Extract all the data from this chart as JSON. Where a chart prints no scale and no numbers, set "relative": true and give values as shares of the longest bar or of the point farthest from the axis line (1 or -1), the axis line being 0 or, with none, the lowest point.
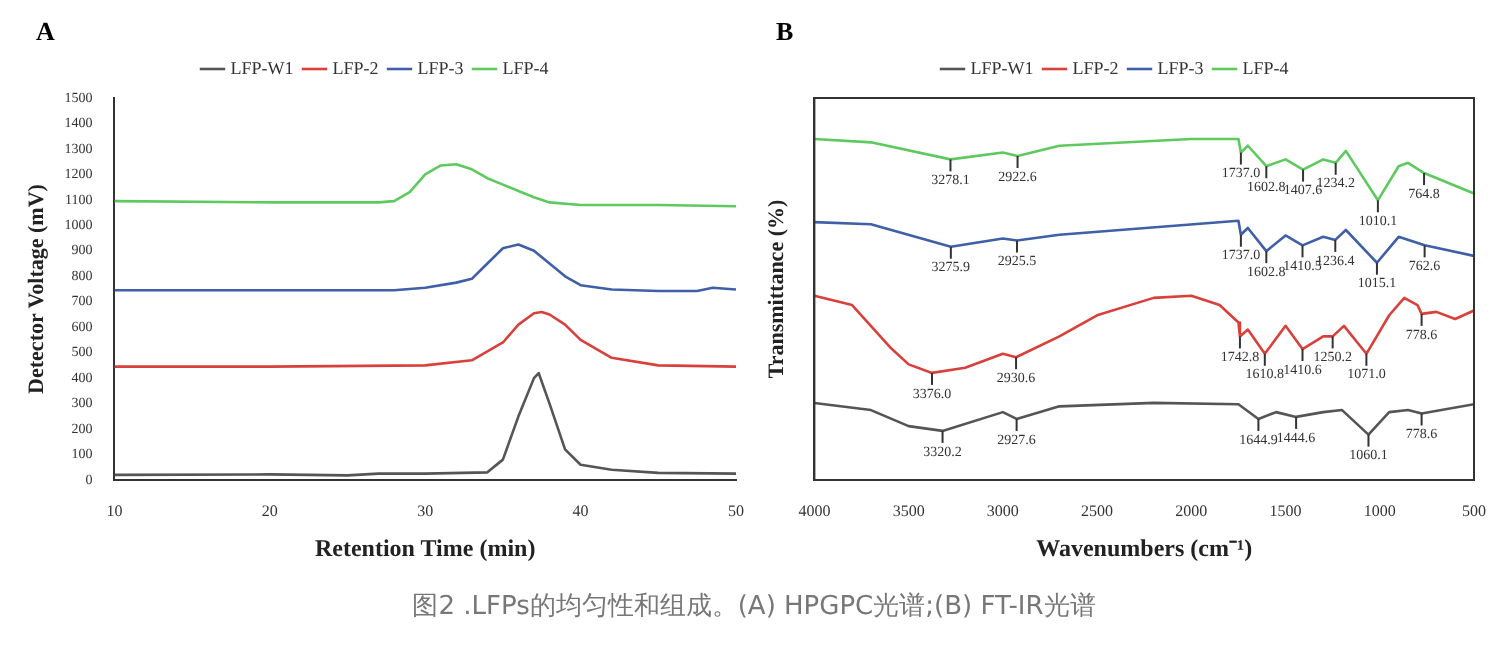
{
  "chart_data": [
    {
      "type": "line",
      "title": "A",
      "xlabel": "Retention Time (min)",
      "ylabel": "Detector Voltage (mV)",
      "xlim": [
        10,
        50
      ],
      "xticks": [
        10,
        20,
        30,
        40,
        50
      ],
      "ylim": [
        0,
        1500
      ],
      "yticks": [
        0,
        100,
        200,
        300,
        400,
        500,
        600,
        700,
        800,
        900,
        1000,
        1100,
        1200,
        1300,
        1400,
        1500
      ],
      "grid": false,
      "legend": "top",
      "marker": "none",
      "series": [
        {
          "name": "LFP-W1",
          "color": "#555555",
          "x": [
            10,
            20,
            25,
            27,
            30,
            34,
            35,
            36,
            37,
            37.3,
            38,
            39,
            40,
            42,
            45,
            50
          ],
          "values": [
            20,
            22,
            18,
            25,
            25,
            30,
            80,
            250,
            400,
            420,
            300,
            120,
            60,
            40,
            28,
            25
          ]
        },
        {
          "name": "LFP-2",
          "color": "#d9403b",
          "x": [
            10,
            20,
            30,
            33,
            35,
            36,
            37,
            37.5,
            38,
            39,
            40,
            42,
            45,
            50
          ],
          "values": [
            445,
            445,
            450,
            470,
            540,
            610,
            655,
            660,
            650,
            610,
            550,
            480,
            450,
            445
          ]
        },
        {
          "name": "LFP-3",
          "color": "#3f5fa8",
          "x": [
            10,
            20,
            28,
            30,
            32,
            33,
            34,
            35,
            36,
            37,
            38,
            39,
            40,
            42,
            45,
            47.5,
            48.5,
            50
          ],
          "values": [
            745,
            745,
            745,
            755,
            775,
            790,
            850,
            910,
            925,
            900,
            850,
            800,
            765,
            748,
            742,
            742,
            755,
            748
          ]
        },
        {
          "name": "LFP-4",
          "color": "#5ec95e",
          "x": [
            10,
            20,
            27,
            28,
            29,
            30,
            31,
            32,
            33,
            34,
            35,
            36,
            37,
            38,
            40,
            45,
            50
          ],
          "values": [
            1095,
            1090,
            1090,
            1095,
            1130,
            1200,
            1235,
            1240,
            1220,
            1185,
            1160,
            1135,
            1110,
            1090,
            1080,
            1080,
            1075
          ]
        }
      ]
    },
    {
      "type": "line",
      "title": "B",
      "xlabel": "Wavenumbers (cm⁻¹)",
      "ylabel": "Transmittance (%)",
      "relative": true,
      "xlim": [
        4000,
        500
      ],
      "xticks": [
        4000,
        3500,
        3000,
        2500,
        2000,
        1500,
        1000,
        500
      ],
      "grid": false,
      "legend": "top",
      "marker": "none",
      "series": [
        {
          "name": "LFP-W1",
          "color": "#555555",
          "x": [
            4000,
            3700,
            3500,
            3320,
            3000,
            2927,
            2700,
            2200,
            1750,
            1644,
            1550,
            1444,
            1300,
            1200,
            1060,
            950,
            850,
            778,
            500
          ],
          "values": [
            0.226,
            0.205,
            0.158,
            0.144,
            0.199,
            0.179,
            0.216,
            0.226,
            0.222,
            0.179,
            0.199,
            0.185,
            0.199,
            0.205,
            0.133,
            0.199,
            0.205,
            0.195,
            0.222
          ]
        },
        {
          "name": "LFP-2",
          "color": "#d9403b",
          "x": [
            4000,
            3800,
            3600,
            3500,
            3376,
            3200,
            3000,
            2930,
            2700,
            2500,
            2200,
            2000,
            1850,
            1750,
            1742,
            1700,
            1610,
            1500,
            1410,
            1300,
            1250,
            1190,
            1071,
            950,
            870,
            800,
            778,
            700,
            600,
            500
          ],
          "values": [
            0.54,
            0.513,
            0.39,
            0.339,
            0.314,
            0.329,
            0.37,
            0.36,
            0.421,
            0.483,
            0.534,
            0.54,
            0.513,
            0.462,
            0.421,
            0.441,
            0.37,
            0.452,
            0.384,
            0.421,
            0.421,
            0.452,
            0.37,
            0.483,
            0.534,
            0.513,
            0.487,
            0.493,
            0.472,
            0.497
          ]
        },
        {
          "name": "LFP-3",
          "color": "#3f5fa8",
          "x": [
            4000,
            3700,
            3276,
            3000,
            2925,
            2700,
            1750,
            1737,
            1700,
            1602,
            1500,
            1410,
            1300,
            1236,
            1180,
            1015,
            900,
            762,
            500
          ],
          "values": [
            0.756,
            0.75,
            0.684,
            0.708,
            0.702,
            0.719,
            0.76,
            0.719,
            0.739,
            0.671,
            0.717,
            0.688,
            0.713,
            0.704,
            0.733,
            0.637,
            0.713,
            0.688,
            0.657
          ]
        },
        {
          "name": "LFP-4",
          "color": "#5ec95e",
          "x": [
            4000,
            3700,
            3278,
            3000,
            2922,
            2700,
            2000,
            1750,
            1737,
            1700,
            1602,
            1500,
            1407,
            1300,
            1234,
            1180,
            1010,
            900,
            850,
            765,
            500
          ],
          "values": [
            1,
            0.99,
            0.94,
            0.96,
            0.95,
            0.98,
            1,
            1,
            0.96,
            0.98,
            0.92,
            0.94,
            0.91,
            0.94,
            0.93,
            0.965,
            0.82,
            0.92,
            0.93,
            0.9,
            0.84
          ]
        }
      ],
      "annotations": [
        {
          "text": "3278.1",
          "x": 3278,
          "y": 0.94
        },
        {
          "text": "2922.6",
          "x": 2922,
          "y": 0.95
        },
        {
          "text": "1737.0",
          "x": 1737,
          "y": 0.96
        },
        {
          "text": "1602.8",
          "x": 1602,
          "y": 0.92
        },
        {
          "text": "1407.6",
          "x": 1407,
          "y": 0.91
        },
        {
          "text": "1234.2",
          "x": 1234,
          "y": 0.93
        },
        {
          "text": "1010.1",
          "x": 1010,
          "y": 0.82
        },
        {
          "text": "764.8",
          "x": 765,
          "y": 0.9
        },
        {
          "text": "3275.9",
          "x": 3276,
          "y": 0.684
        },
        {
          "text": "2925.5",
          "x": 2925,
          "y": 0.702
        },
        {
          "text": "1737.0",
          "x": 1737,
          "y": 0.719
        },
        {
          "text": "1602.8",
          "x": 1602,
          "y": 0.671
        },
        {
          "text": "1410.5",
          "x": 1410,
          "y": 0.688
        },
        {
          "text": "1236.4",
          "x": 1236,
          "y": 0.704
        },
        {
          "text": "1015.1",
          "x": 1015,
          "y": 0.637
        },
        {
          "text": "762.6",
          "x": 762,
          "y": 0.688
        },
        {
          "text": "3376.0",
          "x": 3376,
          "y": 0.314
        },
        {
          "text": "2930.6",
          "x": 2930,
          "y": 0.36
        },
        {
          "text": "1742.8",
          "x": 1742,
          "y": 0.421
        },
        {
          "text": "1610.8",
          "x": 1610,
          "y": 0.37
        },
        {
          "text": "1410.6",
          "x": 1410,
          "y": 0.384
        },
        {
          "text": "1250.2",
          "x": 1250,
          "y": 0.421
        },
        {
          "text": "1071.0",
          "x": 1071,
          "y": 0.37
        },
        {
          "text": "778.6",
          "x": 778,
          "y": 0.487
        },
        {
          "text": "3320.2",
          "x": 3320,
          "y": 0.144
        },
        {
          "text": "2927.6",
          "x": 2927,
          "y": 0.179
        },
        {
          "text": "1644.9",
          "x": 1644,
          "y": 0.179
        },
        {
          "text": "1444.6",
          "x": 1444,
          "y": 0.185
        },
        {
          "text": "1060.1",
          "x": 1060,
          "y": 0.133
        },
        {
          "text": "778.6",
          "x": 778,
          "y": 0.195
        },
        "图2 .LFPs的均匀性和组成。(A) HPGPC光谱;(B) FT-IR光谱"
      ]
    }
  ]
}
